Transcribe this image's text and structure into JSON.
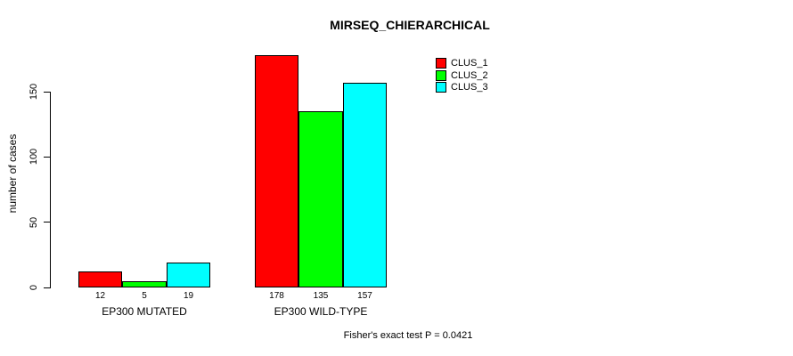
{
  "title": "MIRSEQ_CHIERARCHICAL",
  "footer": {
    "text": "Fisher's exact test P = 0.0421"
  },
  "legend": {
    "items": [
      {
        "label": "CLUS_1",
        "color": "#FF0000"
      },
      {
        "label": "CLUS_2",
        "color": "#00FF00"
      },
      {
        "label": "CLUS_3",
        "color": "#00FFFF"
      }
    ]
  },
  "chart_data": {
    "type": "bar",
    "title": "MIRSEQ_CHIERARCHICAL",
    "xlabel": "",
    "ylabel": "number of cases",
    "categories": [
      "EP300 MUTATED",
      "EP300 WILD-TYPE"
    ],
    "series": [
      {
        "name": "CLUS_1",
        "color": "#FF0000",
        "values": [
          12,
          178
        ]
      },
      {
        "name": "CLUS_2",
        "color": "#00FF00",
        "values": [
          5,
          135
        ]
      },
      {
        "name": "CLUS_3",
        "color": "#00FFFF",
        "values": [
          19,
          157
        ]
      }
    ],
    "yticks": [
      0,
      50,
      100,
      150
    ],
    "ylim": [
      0,
      185
    ],
    "grid": false,
    "legend_position": "top-right-inside",
    "bar_outline_color": "#000000",
    "annotation": "Fisher's exact test P = 0.0421"
  }
}
